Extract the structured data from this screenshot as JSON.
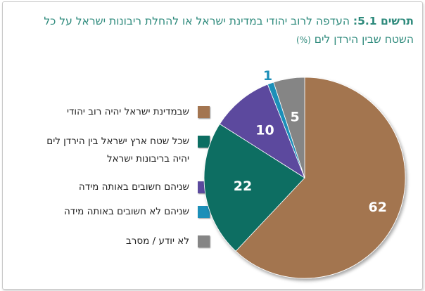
{
  "header": {
    "title_label": "תרשים 5.1:",
    "title_text": " העדפה לרוב יהודי במדינת ישראל או להחלת ריבונות ישראל על כל",
    "subtitle_text": "השטח שבין הירדן לים ",
    "subtitle_unit": "(%)"
  },
  "chart_data": {
    "type": "pie",
    "title": "תרשים 5.1: העדפה לרוב יהודי במדינת ישראל או להחלת ריבונות ישראל על כל השטח שבין הירדן לים (%)",
    "categories": [
      "שבמדינת ישראל יהיה רוב יהודי",
      "שכל שטח ארץ ישראל בין הירדן לים יהיה בריבונות ישראל",
      "שניהם חשובים באותה מידה",
      "שניהם לא חשובים באותה מידה",
      "לא יודע / מסרב"
    ],
    "values": [
      62,
      22,
      10,
      1,
      5
    ],
    "data_labels": [
      "62",
      "22",
      "10",
      "1",
      "5"
    ],
    "colors": [
      "#a37550",
      "#0c6e62",
      "#5b4a9e",
      "#1c8fb8",
      "#858585"
    ],
    "label_colors": [
      "#ffffff",
      "#ffffff",
      "#ffffff",
      "#1c8fb8",
      "#ffffff"
    ],
    "start_angle_deg": 0,
    "direction": "clockwise",
    "legend_position": "left"
  },
  "legend": {
    "items": [
      {
        "line1": "שבמדינת ישראל יהיה רוב יהודי",
        "line2": ""
      },
      {
        "line1": "שכל שטח ארץ ישראל בין הירדן לים",
        "line2": "יהיה בריבונות ישראל"
      },
      {
        "line1": "שניהם חשובים באותה מידה",
        "line2": ""
      },
      {
        "line1": "שניהם לא חשובים באותה מידה",
        "line2": ""
      },
      {
        "line1": "לא יודע / מסרב",
        "line2": ""
      }
    ]
  }
}
